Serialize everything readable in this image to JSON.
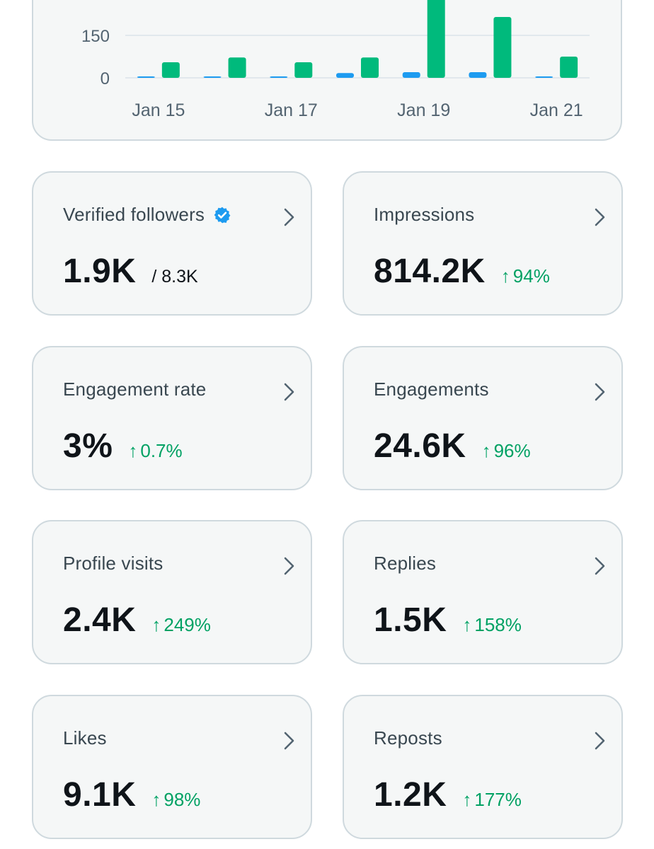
{
  "chart_data": {
    "type": "bar",
    "categories": [
      "Jan 15",
      "Jan 16",
      "Jan 17",
      "Jan 18",
      "Jan 19",
      "Jan 20",
      "Jan 21"
    ],
    "x_tick_labels": [
      "Jan 15",
      "Jan 17",
      "Jan 19",
      "Jan 21"
    ],
    "y_tick_labels": [
      "0",
      "150"
    ],
    "series": [
      {
        "values": [
          4,
          4,
          4,
          17,
          20,
          20,
          2
        ],
        "color": "#1d9bf0"
      },
      {
        "values": [
          55,
          72,
          55,
          72,
          310,
          215,
          75
        ],
        "color": "#00ba7c"
      }
    ],
    "ylim": [
      0,
      300
    ],
    "grid": true
  },
  "cards": [
    {
      "title": "Verified followers",
      "verified": true,
      "value": "1.9K",
      "sub": "/ 8.3K",
      "change": ""
    },
    {
      "title": "Impressions",
      "value": "814.2K",
      "change": "94%"
    },
    {
      "title": "Engagement rate",
      "value": "3%",
      "change": "0.7%"
    },
    {
      "title": "Engagements",
      "value": "24.6K",
      "change": "96%"
    },
    {
      "title": "Profile visits",
      "value": "2.4K",
      "change": "249%"
    },
    {
      "title": "Replies",
      "value": "1.5K",
      "change": "158%"
    },
    {
      "title": "Likes",
      "value": "9.1K",
      "change": "98%"
    },
    {
      "title": "Reposts",
      "value": "1.2K",
      "change": "177%"
    }
  ],
  "arrow_up": "↑",
  "colors": {
    "accent_blue": "#1d9bf0",
    "accent_green": "#00ba7c",
    "change_green": "#00a163",
    "card_bg": "#f5f7f7",
    "card_border": "#cfd9de"
  }
}
